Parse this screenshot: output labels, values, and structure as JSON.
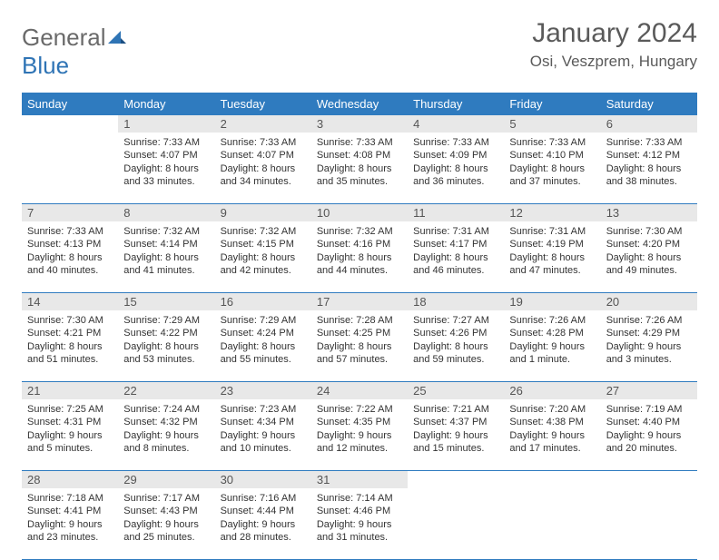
{
  "brand": {
    "part1": "General",
    "part2": "Blue"
  },
  "title": "January 2024",
  "location": "Osi, Veszprem, Hungary",
  "colors": {
    "header_bg": "#2f7bbf",
    "header_text": "#ffffff",
    "daynum_bg": "#e8e8e8",
    "border": "#2f7bbf",
    "brand_gray": "#6a6a6a",
    "brand_blue": "#2f74b5"
  },
  "day_headers": [
    "Sunday",
    "Monday",
    "Tuesday",
    "Wednesday",
    "Thursday",
    "Friday",
    "Saturday"
  ],
  "weeks": [
    [
      {
        "daynum": "",
        "sunrise": "",
        "sunset": "",
        "daylight": ""
      },
      {
        "daynum": "1",
        "sunrise": "Sunrise: 7:33 AM",
        "sunset": "Sunset: 4:07 PM",
        "daylight": "Daylight: 8 hours and 33 minutes."
      },
      {
        "daynum": "2",
        "sunrise": "Sunrise: 7:33 AM",
        "sunset": "Sunset: 4:07 PM",
        "daylight": "Daylight: 8 hours and 34 minutes."
      },
      {
        "daynum": "3",
        "sunrise": "Sunrise: 7:33 AM",
        "sunset": "Sunset: 4:08 PM",
        "daylight": "Daylight: 8 hours and 35 minutes."
      },
      {
        "daynum": "4",
        "sunrise": "Sunrise: 7:33 AM",
        "sunset": "Sunset: 4:09 PM",
        "daylight": "Daylight: 8 hours and 36 minutes."
      },
      {
        "daynum": "5",
        "sunrise": "Sunrise: 7:33 AM",
        "sunset": "Sunset: 4:10 PM",
        "daylight": "Daylight: 8 hours and 37 minutes."
      },
      {
        "daynum": "6",
        "sunrise": "Sunrise: 7:33 AM",
        "sunset": "Sunset: 4:12 PM",
        "daylight": "Daylight: 8 hours and 38 minutes."
      }
    ],
    [
      {
        "daynum": "7",
        "sunrise": "Sunrise: 7:33 AM",
        "sunset": "Sunset: 4:13 PM",
        "daylight": "Daylight: 8 hours and 40 minutes."
      },
      {
        "daynum": "8",
        "sunrise": "Sunrise: 7:32 AM",
        "sunset": "Sunset: 4:14 PM",
        "daylight": "Daylight: 8 hours and 41 minutes."
      },
      {
        "daynum": "9",
        "sunrise": "Sunrise: 7:32 AM",
        "sunset": "Sunset: 4:15 PM",
        "daylight": "Daylight: 8 hours and 42 minutes."
      },
      {
        "daynum": "10",
        "sunrise": "Sunrise: 7:32 AM",
        "sunset": "Sunset: 4:16 PM",
        "daylight": "Daylight: 8 hours and 44 minutes."
      },
      {
        "daynum": "11",
        "sunrise": "Sunrise: 7:31 AM",
        "sunset": "Sunset: 4:17 PM",
        "daylight": "Daylight: 8 hours and 46 minutes."
      },
      {
        "daynum": "12",
        "sunrise": "Sunrise: 7:31 AM",
        "sunset": "Sunset: 4:19 PM",
        "daylight": "Daylight: 8 hours and 47 minutes."
      },
      {
        "daynum": "13",
        "sunrise": "Sunrise: 7:30 AM",
        "sunset": "Sunset: 4:20 PM",
        "daylight": "Daylight: 8 hours and 49 minutes."
      }
    ],
    [
      {
        "daynum": "14",
        "sunrise": "Sunrise: 7:30 AM",
        "sunset": "Sunset: 4:21 PM",
        "daylight": "Daylight: 8 hours and 51 minutes."
      },
      {
        "daynum": "15",
        "sunrise": "Sunrise: 7:29 AM",
        "sunset": "Sunset: 4:22 PM",
        "daylight": "Daylight: 8 hours and 53 minutes."
      },
      {
        "daynum": "16",
        "sunrise": "Sunrise: 7:29 AM",
        "sunset": "Sunset: 4:24 PM",
        "daylight": "Daylight: 8 hours and 55 minutes."
      },
      {
        "daynum": "17",
        "sunrise": "Sunrise: 7:28 AM",
        "sunset": "Sunset: 4:25 PM",
        "daylight": "Daylight: 8 hours and 57 minutes."
      },
      {
        "daynum": "18",
        "sunrise": "Sunrise: 7:27 AM",
        "sunset": "Sunset: 4:26 PM",
        "daylight": "Daylight: 8 hours and 59 minutes."
      },
      {
        "daynum": "19",
        "sunrise": "Sunrise: 7:26 AM",
        "sunset": "Sunset: 4:28 PM",
        "daylight": "Daylight: 9 hours and 1 minute."
      },
      {
        "daynum": "20",
        "sunrise": "Sunrise: 7:26 AM",
        "sunset": "Sunset: 4:29 PM",
        "daylight": "Daylight: 9 hours and 3 minutes."
      }
    ],
    [
      {
        "daynum": "21",
        "sunrise": "Sunrise: 7:25 AM",
        "sunset": "Sunset: 4:31 PM",
        "daylight": "Daylight: 9 hours and 5 minutes."
      },
      {
        "daynum": "22",
        "sunrise": "Sunrise: 7:24 AM",
        "sunset": "Sunset: 4:32 PM",
        "daylight": "Daylight: 9 hours and 8 minutes."
      },
      {
        "daynum": "23",
        "sunrise": "Sunrise: 7:23 AM",
        "sunset": "Sunset: 4:34 PM",
        "daylight": "Daylight: 9 hours and 10 minutes."
      },
      {
        "daynum": "24",
        "sunrise": "Sunrise: 7:22 AM",
        "sunset": "Sunset: 4:35 PM",
        "daylight": "Daylight: 9 hours and 12 minutes."
      },
      {
        "daynum": "25",
        "sunrise": "Sunrise: 7:21 AM",
        "sunset": "Sunset: 4:37 PM",
        "daylight": "Daylight: 9 hours and 15 minutes."
      },
      {
        "daynum": "26",
        "sunrise": "Sunrise: 7:20 AM",
        "sunset": "Sunset: 4:38 PM",
        "daylight": "Daylight: 9 hours and 17 minutes."
      },
      {
        "daynum": "27",
        "sunrise": "Sunrise: 7:19 AM",
        "sunset": "Sunset: 4:40 PM",
        "daylight": "Daylight: 9 hours and 20 minutes."
      }
    ],
    [
      {
        "daynum": "28",
        "sunrise": "Sunrise: 7:18 AM",
        "sunset": "Sunset: 4:41 PM",
        "daylight": "Daylight: 9 hours and 23 minutes."
      },
      {
        "daynum": "29",
        "sunrise": "Sunrise: 7:17 AM",
        "sunset": "Sunset: 4:43 PM",
        "daylight": "Daylight: 9 hours and 25 minutes."
      },
      {
        "daynum": "30",
        "sunrise": "Sunrise: 7:16 AM",
        "sunset": "Sunset: 4:44 PM",
        "daylight": "Daylight: 9 hours and 28 minutes."
      },
      {
        "daynum": "31",
        "sunrise": "Sunrise: 7:14 AM",
        "sunset": "Sunset: 4:46 PM",
        "daylight": "Daylight: 9 hours and 31 minutes."
      },
      {
        "daynum": "",
        "sunrise": "",
        "sunset": "",
        "daylight": ""
      },
      {
        "daynum": "",
        "sunrise": "",
        "sunset": "",
        "daylight": ""
      },
      {
        "daynum": "",
        "sunrise": "",
        "sunset": "",
        "daylight": ""
      }
    ]
  ]
}
